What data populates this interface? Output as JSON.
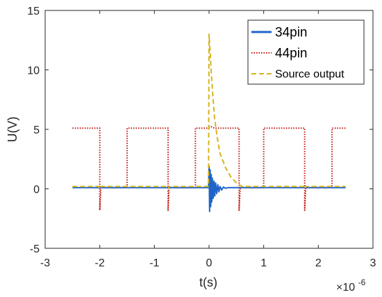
{
  "chart_data": {
    "type": "line",
    "xlabel": "t(s)",
    "ylabel": "U(V)",
    "x_exponent_label": "×10",
    "x_exponent_value": "-6",
    "xlim": [
      -3e-06,
      3e-06
    ],
    "ylim": [
      -5,
      15
    ],
    "x_ticks": [
      -3e-06,
      -2e-06,
      -1e-06,
      0,
      1e-06,
      2e-06,
      3e-06
    ],
    "x_tick_labels": [
      "-3",
      "-2",
      "-1",
      "0",
      "1",
      "2",
      "3"
    ],
    "y_ticks": [
      -5,
      0,
      5,
      10,
      15
    ],
    "y_tick_labels": [
      "-5",
      "0",
      "5",
      "10",
      "15"
    ],
    "grid": false,
    "legend_position": "top-right",
    "series": [
      {
        "name": "34pin",
        "color": "#1f64c8",
        "style": "solid",
        "points": [
          [
            -2.5e-06,
            0.1
          ],
          [
            -1e-08,
            0.1
          ],
          [
            0,
            1.9
          ],
          [
            1e-08,
            -1.9
          ],
          [
            2e-08,
            1.6
          ],
          [
            3e-08,
            -1.5
          ],
          [
            4e-08,
            1.2
          ],
          [
            5e-08,
            -1.1
          ],
          [
            6e-08,
            0.9
          ],
          [
            7.5e-08,
            -0.8
          ],
          [
            9e-08,
            0.65
          ],
          [
            1.05e-07,
            -0.6
          ],
          [
            1.2e-07,
            0.5
          ],
          [
            1.4e-07,
            -0.4
          ],
          [
            1.6e-07,
            0.35
          ],
          [
            1.8e-07,
            -0.25
          ],
          [
            2e-07,
            0.2
          ],
          [
            2.3e-07,
            -0.1
          ],
          [
            2.6e-07,
            0.15
          ],
          [
            3e-07,
            0.05
          ],
          [
            3.5e-07,
            0.1
          ],
          [
            2.5e-06,
            0.1
          ]
        ]
      },
      {
        "name": "44pin",
        "color": "#c0140c",
        "style": "dotted",
        "points": [
          [
            -2.5e-06,
            5.1
          ],
          [
            -2e-06,
            5.1
          ],
          [
            -2e-06,
            -1.8
          ],
          [
            -1.98e-06,
            0.1
          ],
          [
            -1.5e-06,
            0.1
          ],
          [
            -1.5e-06,
            5.1
          ],
          [
            -7.5e-07,
            5.1
          ],
          [
            -7.5e-07,
            -1.8
          ],
          [
            -7.3e-07,
            0.1
          ],
          [
            -2.5e-07,
            0.1
          ],
          [
            -2.5e-07,
            5.1
          ],
          [
            0.0,
            5.1
          ],
          [
            0.0,
            5.3
          ],
          [
            1e-07,
            5.1
          ],
          [
            5.5e-07,
            5.1
          ],
          [
            5.5e-07,
            -1.8
          ],
          [
            5.7e-07,
            0.1
          ],
          [
            1e-06,
            0.1
          ],
          [
            1e-06,
            5.1
          ],
          [
            1.75e-06,
            5.1
          ],
          [
            1.75e-06,
            -1.8
          ],
          [
            1.77e-06,
            0.1
          ],
          [
            2.25e-06,
            0.1
          ],
          [
            2.25e-06,
            5.1
          ],
          [
            2.5e-06,
            5.1
          ]
        ]
      },
      {
        "name": "Source output",
        "color": "#d4b41c",
        "style": "dashed",
        "points": [
          [
            -2.5e-06,
            0.2
          ],
          [
            -2.02e-06,
            0.2
          ],
          [
            -2e-06,
            0.0
          ],
          [
            -1.98e-06,
            0.2
          ],
          [
            -7.7e-07,
            0.2
          ],
          [
            -7.5e-07,
            0.0
          ],
          [
            -7.3e-07,
            0.2
          ],
          [
            -1e-08,
            0.2
          ],
          [
            0.0,
            13.0
          ],
          [
            2e-08,
            11.5
          ],
          [
            4e-08,
            9.8
          ],
          [
            7e-08,
            7.8
          ],
          [
            1e-07,
            6.0
          ],
          [
            1.5e-07,
            4.3
          ],
          [
            2e-07,
            3.0
          ],
          [
            3e-07,
            1.8
          ],
          [
            4e-07,
            1.0
          ],
          [
            5e-07,
            0.5
          ],
          [
            6e-07,
            0.2
          ],
          [
            1.73e-06,
            0.2
          ],
          [
            1.75e-06,
            0.0
          ],
          [
            1.77e-06,
            0.2
          ],
          [
            2.5e-06,
            0.2
          ]
        ]
      }
    ]
  }
}
